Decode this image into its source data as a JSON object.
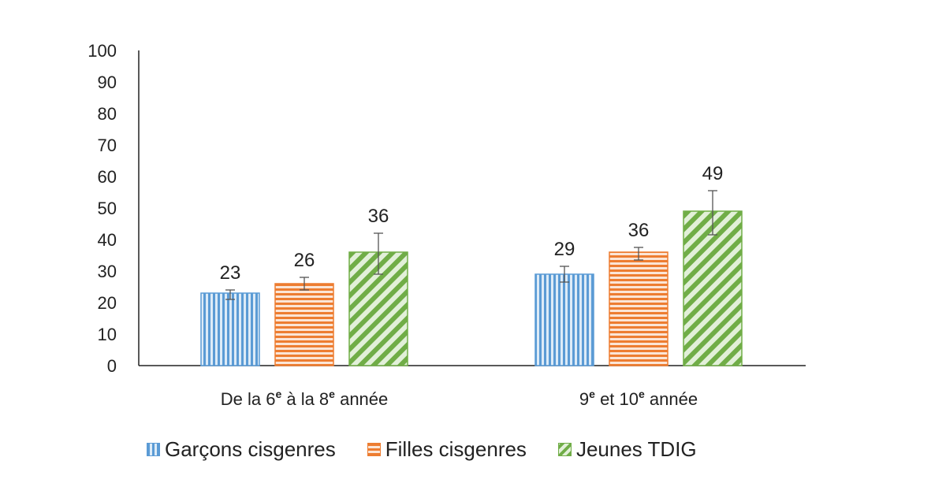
{
  "chart_data": {
    "type": "bar",
    "title": "",
    "xlabel": "",
    "ylabel": "",
    "ylim": [
      0,
      100
    ],
    "yticks": [
      0,
      10,
      20,
      30,
      40,
      50,
      60,
      70,
      80,
      90,
      100
    ],
    "grid": false,
    "legend_position": "bottom",
    "categories": [
      {
        "parts": [
          [
            "De la 6",
            ""
          ],
          [
            "e",
            "sup"
          ],
          [
            " à la 8",
            ""
          ],
          [
            "e",
            "sup"
          ],
          [
            " année",
            ""
          ]
        ]
      },
      {
        "parts": [
          [
            "9",
            ""
          ],
          [
            "e",
            "sup"
          ],
          [
            " et 10",
            ""
          ],
          [
            "e",
            "sup"
          ],
          [
            " année",
            ""
          ]
        ]
      }
    ],
    "series": [
      {
        "name": "Garçons cisgenres",
        "values": [
          23,
          29
        ],
        "err_low": [
          21,
          26.5
        ],
        "err_high": [
          24,
          31.5
        ],
        "color": "#5b9bd5",
        "light": "#ddebf7",
        "pattern": "vertical"
      },
      {
        "name": "Filles cisgenres",
        "values": [
          26,
          36
        ],
        "err_low": [
          24,
          33.5
        ],
        "err_high": [
          28,
          37.5
        ],
        "color": "#ed7d31",
        "light": "#fbe5d6",
        "pattern": "horizontal"
      },
      {
        "name": "Jeunes TDIG",
        "values": [
          36,
          49
        ],
        "err_low": [
          29,
          41.5
        ],
        "err_high": [
          42,
          55.5
        ],
        "color": "#70ad47",
        "light": "#e2f0d9",
        "pattern": "diagonal"
      }
    ]
  }
}
